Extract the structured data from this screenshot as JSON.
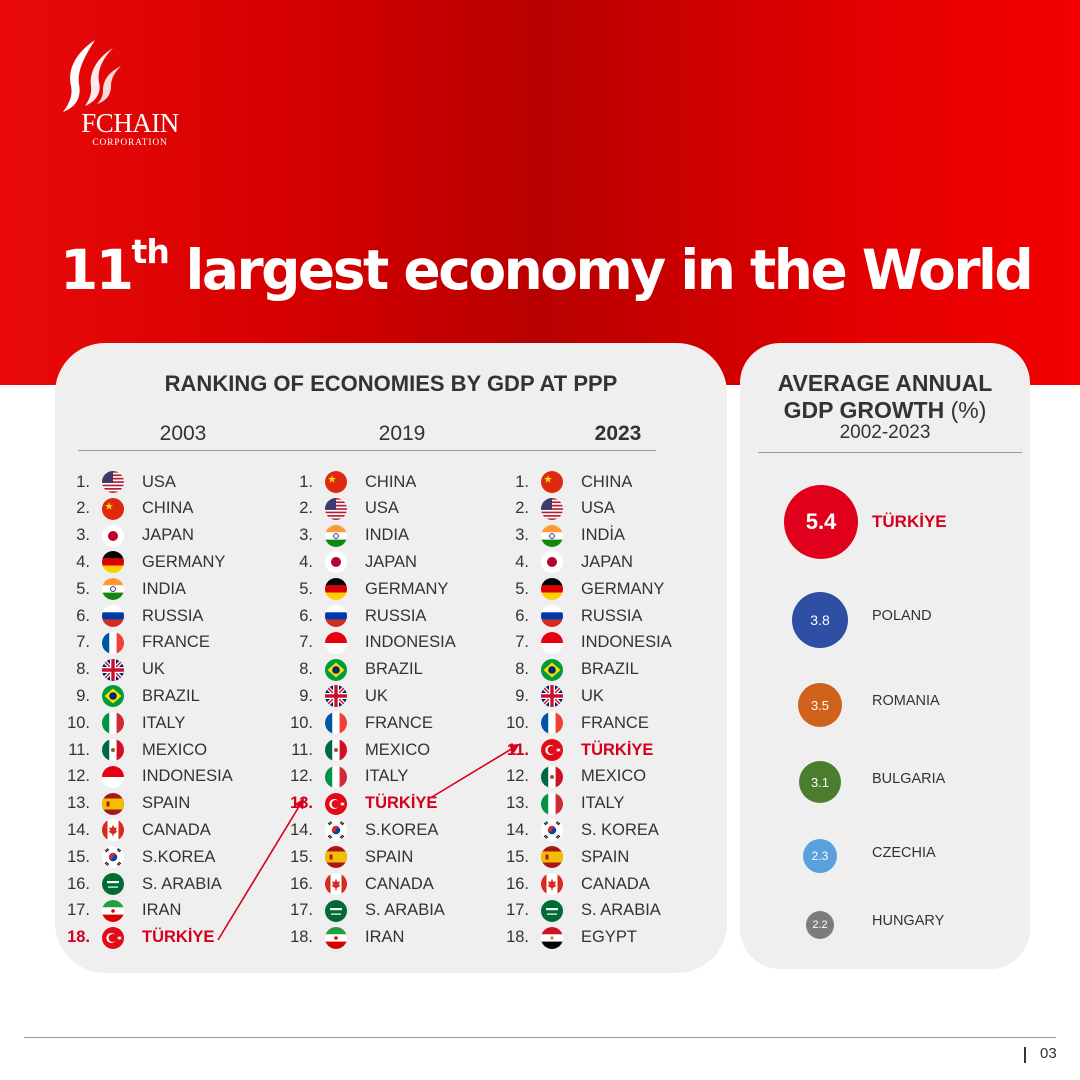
{
  "brand": {
    "name": "FCHAIN",
    "sub": "CORPORATION",
    "colors": {
      "red": "#d5001c",
      "panel": "#efefef"
    }
  },
  "title": {
    "main": "11",
    "sup": "th",
    "rest": " largest economy in the World"
  },
  "ranking": {
    "heading": "RANKING OF ECONOMIES BY GDP AT PPP",
    "columns": [
      {
        "year": "2003",
        "rows": [
          {
            "rank": "1.",
            "country": "USA",
            "flag": "us"
          },
          {
            "rank": "2.",
            "country": "CHINA",
            "flag": "cn"
          },
          {
            "rank": "3.",
            "country": "JAPAN",
            "flag": "jp"
          },
          {
            "rank": "4.",
            "country": "GERMANY",
            "flag": "de"
          },
          {
            "rank": "5.",
            "country": "INDIA",
            "flag": "in"
          },
          {
            "rank": "6.",
            "country": "RUSSIA",
            "flag": "ru"
          },
          {
            "rank": "7.",
            "country": "FRANCE",
            "flag": "fr"
          },
          {
            "rank": "8.",
            "country": "UK",
            "flag": "gb"
          },
          {
            "rank": "9.",
            "country": "BRAZIL",
            "flag": "br"
          },
          {
            "rank": "10.",
            "country": "ITALY",
            "flag": "it"
          },
          {
            "rank": "11.",
            "country": "MEXICO",
            "flag": "mx"
          },
          {
            "rank": "12.",
            "country": "INDONESIA",
            "flag": "id"
          },
          {
            "rank": "13.",
            "country": "SPAIN",
            "flag": "es"
          },
          {
            "rank": "14.",
            "country": "CANADA",
            "flag": "ca"
          },
          {
            "rank": "15.",
            "country": "S.KOREA",
            "flag": "kr"
          },
          {
            "rank": "16.",
            "country": "S. ARABIA",
            "flag": "sa"
          },
          {
            "rank": "17.",
            "country": "IRAN",
            "flag": "ir"
          },
          {
            "rank": "18.",
            "country": "TÜRKİYE",
            "flag": "tr",
            "highlight": true
          }
        ]
      },
      {
        "year": "2019",
        "rows": [
          {
            "rank": "1.",
            "country": "CHINA",
            "flag": "cn"
          },
          {
            "rank": "2.",
            "country": "USA",
            "flag": "us"
          },
          {
            "rank": "3.",
            "country": "INDIA",
            "flag": "in"
          },
          {
            "rank": "4.",
            "country": "JAPAN",
            "flag": "jp"
          },
          {
            "rank": "5.",
            "country": "GERMANY",
            "flag": "de"
          },
          {
            "rank": "6.",
            "country": "RUSSIA",
            "flag": "ru"
          },
          {
            "rank": "7.",
            "country": "INDONESIA",
            "flag": "id"
          },
          {
            "rank": "8.",
            "country": "BRAZIL",
            "flag": "br"
          },
          {
            "rank": "9.",
            "country": "UK",
            "flag": "gb"
          },
          {
            "rank": "10.",
            "country": "FRANCE",
            "flag": "fr"
          },
          {
            "rank": "11.",
            "country": "MEXICO",
            "flag": "mx"
          },
          {
            "rank": "12.",
            "country": "ITALY",
            "flag": "it"
          },
          {
            "rank": "13.",
            "country": "TÜRKİYE",
            "flag": "tr",
            "highlight": true
          },
          {
            "rank": "14.",
            "country": "S.KOREA",
            "flag": "kr"
          },
          {
            "rank": "15.",
            "country": "SPAIN",
            "flag": "es"
          },
          {
            "rank": "16.",
            "country": "CANADA",
            "flag": "ca"
          },
          {
            "rank": "17.",
            "country": "S. ARABIA",
            "flag": "sa"
          },
          {
            "rank": "18.",
            "country": "IRAN",
            "flag": "ir"
          }
        ]
      },
      {
        "year": "2023",
        "rows": [
          {
            "rank": "1.",
            "country": "CHINA",
            "flag": "cn"
          },
          {
            "rank": "2.",
            "country": "USA",
            "flag": "us"
          },
          {
            "rank": "3.",
            "country": "INDİA",
            "flag": "in"
          },
          {
            "rank": "4.",
            "country": "JAPAN",
            "flag": "jp"
          },
          {
            "rank": "5.",
            "country": "GERMANY",
            "flag": "de"
          },
          {
            "rank": "6.",
            "country": "RUSSIA",
            "flag": "ru"
          },
          {
            "rank": "7.",
            "country": "INDONESIA",
            "flag": "id"
          },
          {
            "rank": "8.",
            "country": "BRAZIL",
            "flag": "br"
          },
          {
            "rank": "9.",
            "country": "UK",
            "flag": "gb"
          },
          {
            "rank": "10.",
            "country": "FRANCE",
            "flag": "fr"
          },
          {
            "rank": "11.",
            "country": "TÜRKİYE",
            "flag": "tr",
            "highlight": true
          },
          {
            "rank": "12.",
            "country": "MEXICO",
            "flag": "mx"
          },
          {
            "rank": "13.",
            "country": "ITALY",
            "flag": "it"
          },
          {
            "rank": "14.",
            "country": "S. KOREA",
            "flag": "kr"
          },
          {
            "rank": "15.",
            "country": "SPAIN",
            "flag": "es"
          },
          {
            "rank": "16.",
            "country": "CANADA",
            "flag": "ca"
          },
          {
            "rank": "17.",
            "country": "S. ARABIA",
            "flag": "sa"
          },
          {
            "rank": "18.",
            "country": "EGYPT",
            "flag": "eg"
          }
        ]
      }
    ]
  },
  "growth": {
    "heading_line1": "AVERAGE ANNUAL",
    "heading_line2_bold": "GDP GROWTH",
    "heading_line2_unit": " (%)",
    "period": "2002-2023",
    "items": [
      {
        "value": "5.4",
        "country": "TÜRKİYE",
        "color": "#e0001b"
      },
      {
        "value": "3.8",
        "country": "POLAND",
        "color": "#2e4fa3"
      },
      {
        "value": "3.5",
        "country": "ROMANIA",
        "color": "#d0621c"
      },
      {
        "value": "3.1",
        "country": "BULGARIA",
        "color": "#4b7d2f"
      },
      {
        "value": "2.3",
        "country": "CZECHIA",
        "color": "#5aa0dc"
      },
      {
        "value": "2.2",
        "country": "HUNGARY",
        "color": "#7c7c7c"
      }
    ]
  },
  "footer": {
    "page": "03"
  }
}
